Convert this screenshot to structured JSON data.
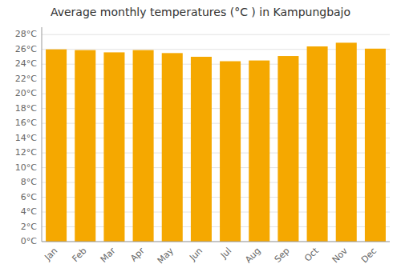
{
  "chart_data": {
    "type": "bar",
    "title": "Average monthly temperatures (°C ) in Kampungbajo",
    "categories": [
      "Jan",
      "Feb",
      "Mar",
      "Apr",
      "May",
      "Jun",
      "Jul",
      "Aug",
      "Sep",
      "Oct",
      "Nov",
      "Dec"
    ],
    "values": [
      26.0,
      25.9,
      25.6,
      25.9,
      25.5,
      25.0,
      24.4,
      24.5,
      25.1,
      26.4,
      26.9,
      26.1
    ],
    "color": "#F5A800",
    "ylim": [
      0,
      29
    ],
    "yticks": [
      {
        "value": 0,
        "label": "0°C"
      },
      {
        "value": 2,
        "label": "2°C"
      },
      {
        "value": 4,
        "label": "4°C"
      },
      {
        "value": 6,
        "label": "6°C"
      },
      {
        "value": 8,
        "label": "8°C"
      },
      {
        "value": 10,
        "label": "10°C"
      },
      {
        "value": 12,
        "label": "12°C"
      },
      {
        "value": 14,
        "label": "14°C"
      },
      {
        "value": 16,
        "label": "16°C"
      },
      {
        "value": 18,
        "label": "18°C"
      },
      {
        "value": 20,
        "label": "20°C"
      },
      {
        "value": 22,
        "label": "22°C"
      },
      {
        "value": 24,
        "label": "24°C"
      },
      {
        "value": 26,
        "label": "26°C"
      },
      {
        "value": 28,
        "label": "28°C"
      }
    ],
    "grid": true
  }
}
